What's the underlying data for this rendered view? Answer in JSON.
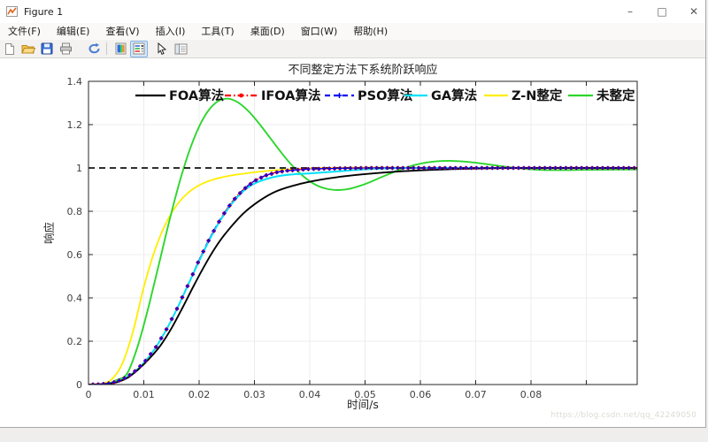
{
  "window": {
    "title": "Figure 1",
    "controls": {
      "minimize": "–",
      "maximize": "□",
      "close": "✕"
    }
  },
  "menu": {
    "items": [
      "文件(F)",
      "编辑(E)",
      "查看(V)",
      "插入(I)",
      "工具(T)",
      "桌面(D)",
      "窗口(W)",
      "帮助(H)"
    ]
  },
  "toolbar": {
    "icons": [
      "new-document-icon",
      "open-folder-icon",
      "save-icon",
      "print-icon",
      "rotate-3d-icon",
      "insert-colorbar-icon",
      "insert-legend-icon",
      "edit-plot-cursor-icon",
      "property-editor-icon"
    ],
    "active_icon": "insert-legend-icon"
  },
  "watermark": "https://blog.csdn.net/qq_42249050",
  "chart_data": {
    "type": "line",
    "title": "不同整定方法下系统阶跃响应",
    "xlabel": "时间/s",
    "ylabel": "响应",
    "xlim": [
      0,
      0.0992
    ],
    "ylim": [
      0,
      1.4
    ],
    "grid": true,
    "legend_position": "top-inside-row-no-box",
    "x_ticks": [
      0,
      0.01,
      0.02,
      0.03,
      0.04,
      0.05,
      0.06,
      0.07,
      0.08,
      0.09
    ],
    "x_tick_labels": [
      "0",
      "0.01",
      "0.02",
      "0.03",
      "0.04",
      "0.05",
      "0.06",
      "0.07",
      "0.08",
      ""
    ],
    "y_ticks": [
      0,
      0.2,
      0.4,
      0.6,
      0.8,
      1,
      1.2,
      1.4
    ],
    "y_tick_labels": [
      "0",
      "0.2",
      "0.4",
      "0.6",
      "0.8",
      "1",
      "1.2",
      "1.4"
    ],
    "reference_line": {
      "y": 1,
      "style": "dashed",
      "color": "#111111"
    },
    "series": [
      {
        "name": "FOA算法",
        "color": "#000000",
        "style": "solid",
        "marker": "none",
        "points": [
          [
            0,
            0
          ],
          [
            0.003,
            0.002
          ],
          [
            0.005,
            0.01
          ],
          [
            0.007,
            0.03
          ],
          [
            0.009,
            0.07
          ],
          [
            0.011,
            0.12
          ],
          [
            0.013,
            0.18
          ],
          [
            0.015,
            0.26
          ],
          [
            0.017,
            0.355
          ],
          [
            0.019,
            0.455
          ],
          [
            0.021,
            0.55
          ],
          [
            0.023,
            0.635
          ],
          [
            0.025,
            0.705
          ],
          [
            0.028,
            0.79
          ],
          [
            0.031,
            0.85
          ],
          [
            0.034,
            0.893
          ],
          [
            0.038,
            0.925
          ],
          [
            0.042,
            0.946
          ],
          [
            0.046,
            0.961
          ],
          [
            0.05,
            0.972
          ],
          [
            0.055,
            0.982
          ],
          [
            0.06,
            0.989
          ],
          [
            0.065,
            0.994
          ],
          [
            0.07,
            0.997
          ],
          [
            0.075,
            0.999
          ],
          [
            0.08,
            1
          ],
          [
            0.09,
            1
          ],
          [
            0.0992,
            1
          ]
        ]
      },
      {
        "name": "IFOA算法",
        "color": "#ff0000",
        "style": "dash-dot",
        "marker": "filled-circle",
        "points": [
          [
            0,
            0
          ],
          [
            0.002,
            0.001
          ],
          [
            0.004,
            0.006
          ],
          [
            0.006,
            0.022
          ],
          [
            0.008,
            0.052
          ],
          [
            0.01,
            0.1
          ],
          [
            0.012,
            0.165
          ],
          [
            0.014,
            0.25
          ],
          [
            0.016,
            0.35
          ],
          [
            0.018,
            0.46
          ],
          [
            0.02,
            0.575
          ],
          [
            0.022,
            0.68
          ],
          [
            0.024,
            0.77
          ],
          [
            0.026,
            0.845
          ],
          [
            0.028,
            0.9
          ],
          [
            0.03,
            0.94
          ],
          [
            0.032,
            0.965
          ],
          [
            0.034,
            0.98
          ],
          [
            0.036,
            0.988
          ],
          [
            0.04,
            0.995
          ],
          [
            0.045,
            0.998
          ],
          [
            0.05,
            1
          ],
          [
            0.06,
            1
          ],
          [
            0.07,
            1
          ],
          [
            0.08,
            1
          ],
          [
            0.09,
            1
          ],
          [
            0.0992,
            1
          ]
        ]
      },
      {
        "name": "PSO算法",
        "color": "#0000ee",
        "style": "dashed",
        "marker": "plus",
        "points": [
          [
            0,
            0
          ],
          [
            0.002,
            0.001
          ],
          [
            0.004,
            0.006
          ],
          [
            0.006,
            0.022
          ],
          [
            0.008,
            0.052
          ],
          [
            0.01,
            0.1
          ],
          [
            0.012,
            0.165
          ],
          [
            0.014,
            0.25
          ],
          [
            0.016,
            0.35
          ],
          [
            0.018,
            0.46
          ],
          [
            0.02,
            0.575
          ],
          [
            0.022,
            0.68
          ],
          [
            0.024,
            0.77
          ],
          [
            0.026,
            0.845
          ],
          [
            0.028,
            0.9
          ],
          [
            0.03,
            0.94
          ],
          [
            0.032,
            0.965
          ],
          [
            0.034,
            0.98
          ],
          [
            0.036,
            0.988
          ],
          [
            0.04,
            0.995
          ],
          [
            0.045,
            0.998
          ],
          [
            0.05,
            1
          ],
          [
            0.06,
            1
          ],
          [
            0.07,
            1
          ],
          [
            0.08,
            1
          ],
          [
            0.09,
            1
          ],
          [
            0.0992,
            1
          ]
        ]
      },
      {
        "name": "GA算法",
        "color": "#00e0fa",
        "style": "solid",
        "marker": "none",
        "points": [
          [
            0,
            0
          ],
          [
            0.002,
            0.001
          ],
          [
            0.004,
            0.006
          ],
          [
            0.006,
            0.022
          ],
          [
            0.008,
            0.052
          ],
          [
            0.01,
            0.1
          ],
          [
            0.012,
            0.165
          ],
          [
            0.014,
            0.25
          ],
          [
            0.016,
            0.35
          ],
          [
            0.018,
            0.46
          ],
          [
            0.02,
            0.57
          ],
          [
            0.022,
            0.675
          ],
          [
            0.024,
            0.765
          ],
          [
            0.026,
            0.838
          ],
          [
            0.028,
            0.893
          ],
          [
            0.03,
            0.928
          ],
          [
            0.033,
            0.955
          ],
          [
            0.036,
            0.968
          ],
          [
            0.04,
            0.975
          ],
          [
            0.044,
            0.982
          ],
          [
            0.048,
            0.99
          ],
          [
            0.052,
            0.996
          ],
          [
            0.056,
            0.999
          ],
          [
            0.06,
            1
          ],
          [
            0.07,
            1
          ],
          [
            0.08,
            1
          ],
          [
            0.09,
            1
          ],
          [
            0.0992,
            1
          ]
        ]
      },
      {
        "name": "Z-N整定",
        "color": "#ffee00",
        "style": "solid",
        "marker": "none",
        "points": [
          [
            0,
            0
          ],
          [
            0.002,
            0.002
          ],
          [
            0.004,
            0.02
          ],
          [
            0.006,
            0.09
          ],
          [
            0.008,
            0.24
          ],
          [
            0.01,
            0.45
          ],
          [
            0.012,
            0.62
          ],
          [
            0.014,
            0.745
          ],
          [
            0.016,
            0.83
          ],
          [
            0.018,
            0.885
          ],
          [
            0.02,
            0.92
          ],
          [
            0.023,
            0.95
          ],
          [
            0.026,
            0.966
          ],
          [
            0.03,
            0.98
          ],
          [
            0.034,
            0.99
          ],
          [
            0.038,
            0.996
          ],
          [
            0.042,
            1
          ],
          [
            0.05,
            1.002
          ],
          [
            0.06,
            1.001
          ],
          [
            0.07,
            1
          ],
          [
            0.08,
            1
          ],
          [
            0.09,
            1
          ],
          [
            0.0992,
            1
          ]
        ]
      },
      {
        "name": "未整定",
        "color": "#2dd62d",
        "style": "solid",
        "marker": "none",
        "points": [
          [
            0,
            0
          ],
          [
            0.002,
            0.001
          ],
          [
            0.004,
            0.008
          ],
          [
            0.005,
            0.02
          ],
          [
            0.007,
            0.052
          ],
          [
            0.009,
            0.186
          ],
          [
            0.011,
            0.374
          ],
          [
            0.013,
            0.585
          ],
          [
            0.015,
            0.795
          ],
          [
            0.017,
            0.982
          ],
          [
            0.019,
            1.132
          ],
          [
            0.021,
            1.239
          ],
          [
            0.023,
            1.301
          ],
          [
            0.025,
            1.32
          ],
          [
            0.027,
            1.303
          ],
          [
            0.029,
            1.26
          ],
          [
            0.031,
            1.2
          ],
          [
            0.033,
            1.133
          ],
          [
            0.035,
            1.066
          ],
          [
            0.037,
            1.006
          ],
          [
            0.039,
            0.958
          ],
          [
            0.041,
            0.923
          ],
          [
            0.043,
            0.904
          ],
          [
            0.045,
            0.898
          ],
          [
            0.047,
            0.903
          ],
          [
            0.049,
            0.917
          ],
          [
            0.051,
            0.936
          ],
          [
            0.053,
            0.958
          ],
          [
            0.055,
            0.979
          ],
          [
            0.057,
            0.998
          ],
          [
            0.059,
            1.014
          ],
          [
            0.061,
            1.025
          ],
          [
            0.063,
            1.031
          ],
          [
            0.065,
            1.033
          ],
          [
            0.067,
            1.031
          ],
          [
            0.069,
            1.027
          ],
          [
            0.071,
            1.021
          ],
          [
            0.073,
            1.014
          ],
          [
            0.075,
            1.007
          ],
          [
            0.077,
            1.001
          ],
          [
            0.079,
            0.996
          ],
          [
            0.081,
            0.992
          ],
          [
            0.083,
            0.99
          ],
          [
            0.085,
            0.99
          ],
          [
            0.087,
            0.99
          ],
          [
            0.089,
            0.991
          ],
          [
            0.0992,
            0.993
          ]
        ]
      }
    ]
  }
}
